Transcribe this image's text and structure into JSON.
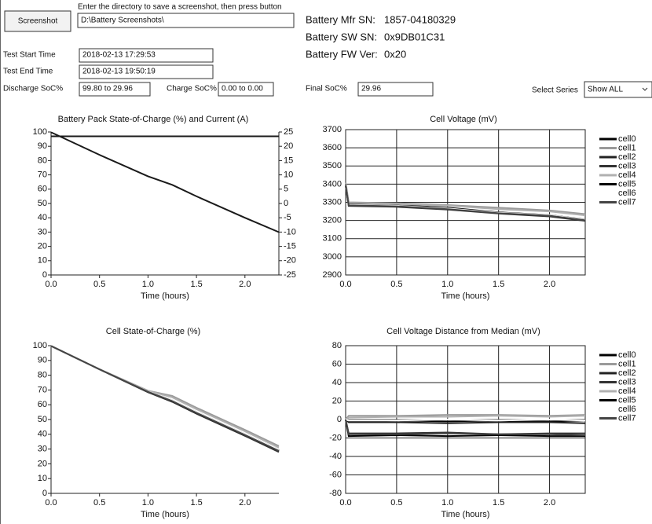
{
  "ui": {
    "screenshot_button": "Screenshot",
    "instructions": "Enter the directory to save a screenshot, then press button",
    "directory": "D:\\Battery Screenshots\\",
    "test_start_label": "Test Start Time",
    "test_start": "2018-02-13 17:29:53",
    "test_end_label": "Test End Time",
    "test_end": "2018-02-13 19:50:19",
    "discharge_label": "Discharge SoC%",
    "discharge": "99.80 to 29.96",
    "charge_label": "Charge SoC%",
    "charge": "0.00 to 0.00",
    "final_label": "Final SoC%",
    "final": "29.96",
    "mfr_sn_label": "Battery Mfr SN:",
    "mfr_sn": "1857-04180329",
    "sw_sn_label": "Battery SW SN:",
    "sw_sn": "0x9DB01C31",
    "fw_ver_label": "Battery FW Ver:",
    "fw_ver": "0x20",
    "select_series_label": "Select Series",
    "select_series": "Show ALL"
  },
  "chart_data": [
    {
      "type": "line",
      "title": "Battery Pack State-of-Charge (%) and Current (A)",
      "xlabel": "Time (hours)",
      "x": [
        0,
        0.5,
        1.0,
        1.25,
        1.5,
        2.0,
        2.35
      ],
      "series": [
        {
          "color": "#1a1a1a",
          "values": [
            99.8,
            84,
            69,
            63,
            55,
            40,
            29.96
          ]
        },
        {
          "color": "#1a1a1a",
          "axis": "y2",
          "values": [
            23.5,
            23.5,
            23.5,
            23.5,
            23.5,
            23.5,
            23.5
          ]
        }
      ],
      "xlim": [
        0,
        2.35
      ],
      "xticks": [
        {
          "value": 0,
          "label": "0.0"
        },
        0.5,
        {
          "value": 1,
          "label": "1.0"
        },
        1.5,
        {
          "value": 2,
          "label": "2.0"
        }
      ],
      "ylim": [
        0,
        100
      ],
      "yticks": [
        0,
        10,
        20,
        30,
        40,
        50,
        60,
        70,
        80,
        90,
        100
      ],
      "y2lim": [
        -25,
        25
      ],
      "y2ticks": [
        -25,
        -20,
        -15,
        -10,
        -5,
        0,
        5,
        10,
        15,
        20,
        25
      ],
      "grid": false
    },
    {
      "type": "line",
      "title": "Cell Voltage (mV)",
      "xlabel": "Time (hours)",
      "x": [
        0,
        0.03,
        0.5,
        1.0,
        1.5,
        2.0,
        2.35
      ],
      "series": [
        {
          "name": "cell0",
          "color": "#000000",
          "values": [
            3400,
            3290,
            3285,
            3270,
            3245,
            3230,
            3205
          ]
        },
        {
          "name": "cell1",
          "color": "#9a9a9a",
          "values": [
            3410,
            3300,
            3295,
            3285,
            3270,
            3255,
            3235
          ]
        },
        {
          "name": "cell2",
          "color": "#222222",
          "values": [
            3395,
            3285,
            3280,
            3265,
            3240,
            3225,
            3200
          ]
        },
        {
          "name": "cell3",
          "color": "#333333",
          "values": [
            3390,
            3280,
            3275,
            3260,
            3238,
            3222,
            3198
          ]
        },
        {
          "name": "cell4",
          "color": "#b0b0b0",
          "values": [
            3405,
            3295,
            3290,
            3282,
            3262,
            3250,
            3228
          ]
        },
        {
          "name": "cell5",
          "color": "#000000",
          "values": [
            3400,
            3288,
            3282,
            3262,
            3242,
            3228,
            3203
          ]
        },
        {
          "name": "cell6",
          "color": "#ffffff",
          "values": [
            3398,
            3286,
            3281,
            3266,
            3243,
            3229,
            3204
          ]
        },
        {
          "name": "cell7",
          "color": "#444444",
          "values": [
            3395,
            3283,
            3278,
            3262,
            3240,
            3226,
            3201
          ]
        }
      ],
      "xlim": [
        0,
        2.35
      ],
      "xticks": [
        {
          "value": 0,
          "label": "0.0"
        },
        0.5,
        {
          "value": 1,
          "label": "1.0"
        },
        1.5,
        {
          "value": 2,
          "label": "2.0"
        }
      ],
      "ylim": [
        2900,
        3700
      ],
      "yticks": [
        2900,
        3000,
        3100,
        3200,
        3300,
        3400,
        3500,
        3600,
        3700
      ],
      "grid": true,
      "legend": "right"
    },
    {
      "type": "line",
      "title": "Cell State-of-Charge (%)",
      "xlabel": "Time (hours)",
      "x": [
        0,
        0.5,
        1.0,
        1.25,
        1.5,
        2.0,
        2.35
      ],
      "series": [
        {
          "color": "#000000",
          "values": [
            99.8,
            84,
            69,
            63,
            55,
            40,
            29.5
          ]
        },
        {
          "color": "#9a9a9a",
          "values": [
            99.8,
            84,
            69.5,
            66,
            58,
            43,
            32
          ]
        },
        {
          "color": "#222222",
          "values": [
            99.8,
            84,
            68.5,
            62,
            54,
            39,
            28.5
          ]
        },
        {
          "color": "#333333",
          "values": [
            99.8,
            84,
            68.5,
            62,
            54,
            39,
            28
          ]
        },
        {
          "color": "#b0b0b0",
          "values": [
            99.8,
            84,
            69.5,
            65,
            57,
            42,
            31
          ]
        },
        {
          "color": "#000000",
          "values": [
            99.8,
            84,
            69,
            62.5,
            54.5,
            39.5,
            29
          ]
        },
        {
          "color": "#ffffff",
          "values": [
            99.8,
            84,
            69,
            63,
            55,
            40,
            29.5
          ]
        },
        {
          "color": "#444444",
          "values": [
            99.8,
            84,
            68.8,
            62.5,
            54.5,
            39.5,
            28.8
          ]
        }
      ],
      "xlim": [
        0,
        2.35
      ],
      "xticks": [
        {
          "value": 0,
          "label": "0.0"
        },
        0.5,
        {
          "value": 1,
          "label": "1.0"
        },
        1.5,
        {
          "value": 2,
          "label": "2.0"
        }
      ],
      "ylim": [
        0,
        100
      ],
      "yticks": [
        0,
        10,
        20,
        30,
        40,
        50,
        60,
        70,
        80,
        90,
        100
      ],
      "grid": false
    },
    {
      "type": "line",
      "title": "Cell Voltage Distance from Median (mV)",
      "xlabel": "Time (hours)",
      "x": [
        0,
        0.03,
        0.5,
        1.0,
        1.5,
        2.0,
        2.35
      ],
      "series": [
        {
          "name": "cell0",
          "color": "#000000",
          "values": [
            0,
            -2,
            -1,
            -2,
            -1,
            -2,
            -1
          ]
        },
        {
          "name": "cell1",
          "color": "#9a9a9a",
          "values": [
            0,
            4,
            4,
            5,
            5,
            4,
            5
          ]
        },
        {
          "name": "cell2",
          "color": "#222222",
          "values": [
            0,
            -3,
            -3,
            -4,
            -3,
            -3,
            -4
          ]
        },
        {
          "name": "cell3",
          "color": "#333333",
          "values": [
            0,
            -15,
            -15,
            -14,
            -16,
            -15,
            -15
          ]
        },
        {
          "name": "cell4",
          "color": "#b0b0b0",
          "values": [
            0,
            2,
            3,
            3,
            4,
            3,
            4
          ]
        },
        {
          "name": "cell5",
          "color": "#000000",
          "values": [
            0,
            -18,
            -17,
            -18,
            -17,
            -18,
            -18
          ]
        },
        {
          "name": "cell6",
          "color": "#ffffff",
          "values": [
            0,
            -1,
            -1,
            0,
            -1,
            0,
            -1
          ]
        },
        {
          "name": "cell7",
          "color": "#444444",
          "values": [
            0,
            -16,
            -16,
            -15,
            -16,
            -16,
            -17
          ]
        }
      ],
      "xlim": [
        0,
        2.35
      ],
      "xticks": [
        {
          "value": 0,
          "label": "0.0"
        },
        0.5,
        {
          "value": 1,
          "label": "1.0"
        },
        1.5,
        {
          "value": 2,
          "label": "2.0"
        }
      ],
      "ylim": [
        -80,
        80
      ],
      "yticks": [
        -80,
        -60,
        -40,
        -20,
        0,
        20,
        40,
        60,
        80
      ],
      "grid": true,
      "legend": "right"
    }
  ]
}
